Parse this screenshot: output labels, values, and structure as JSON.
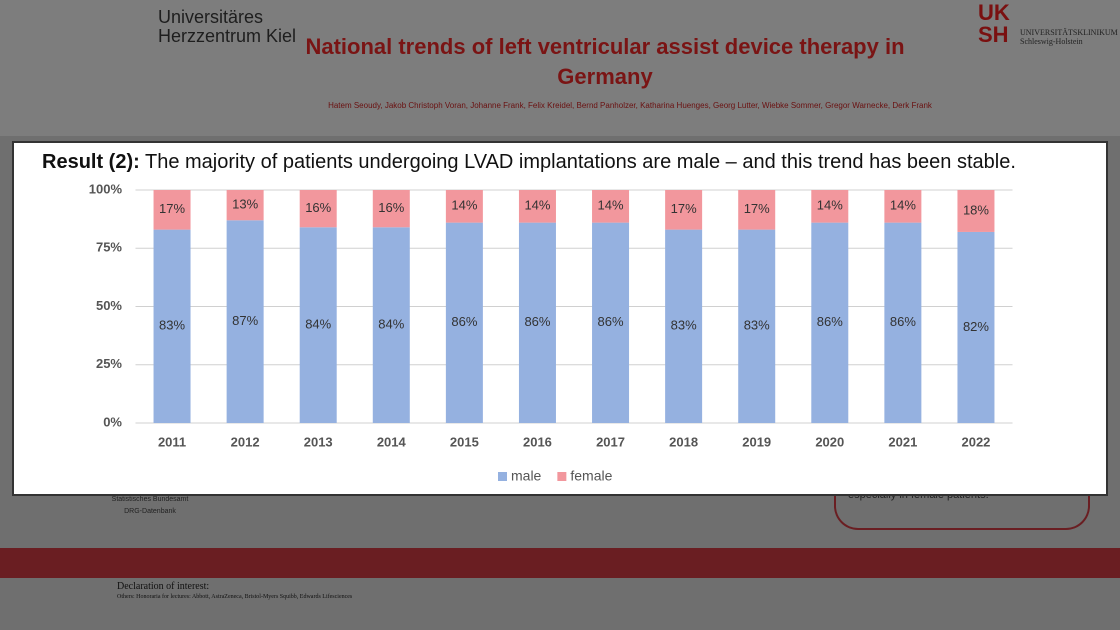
{
  "header": {
    "institution": "Universitäres Herzzentrum Kiel",
    "logo_right": "UKSH",
    "logo_right_sub": "UNIVERSITÄTSKLINIKUM Schleswig-Holstein",
    "title": "National trends of left ventricular assist device therapy in Germany",
    "authors": "Hatem Seoudy, Jakob Christoph Voran, Johanne Frank, Felix Kreidel, Bernd Panholzer, Katharina Huenges, Georg Lutter, Wiebke Sommer, Gregor Warnecke, Derk Frank"
  },
  "background": {
    "source_1": "Statistisches Bundesamt",
    "source_2": "DRG-Datenbank",
    "conclusion": "especially in female patients.",
    "declaration_title": "Declaration of interest:",
    "declaration_text": "Others: Honoraria for lectures: Abbott, AstraZeneca, Bristol-Myers Squibb, Edwards Lifesciences"
  },
  "result": {
    "label": "Result (2):",
    "text": "The majority of patients undergoing LVAD implantations are male – and this trend has been stable."
  },
  "chart_data": {
    "type": "bar",
    "stacked": true,
    "grid": true,
    "legend": "bottom",
    "categories": [
      "2011",
      "2012",
      "2013",
      "2014",
      "2015",
      "2016",
      "2017",
      "2018",
      "2019",
      "2020",
      "2021",
      "2022"
    ],
    "series": [
      {
        "name": "male",
        "color": "#95b1e0",
        "values": [
          83,
          87,
          84,
          84,
          86,
          86,
          86,
          83,
          83,
          86,
          86,
          82
        ],
        "value_labels": [
          "83%",
          "87%",
          "84%",
          "84%",
          "86%",
          "86%",
          "86%",
          "83%",
          "83%",
          "86%",
          "86%",
          "82%"
        ]
      },
      {
        "name": "female",
        "color": "#f2979d",
        "values": [
          17,
          13,
          16,
          16,
          14,
          14,
          14,
          17,
          17,
          14,
          14,
          18
        ],
        "value_labels": [
          "17%",
          "13%",
          "16%",
          "16%",
          "14%",
          "14%",
          "14%",
          "17%",
          "17%",
          "14%",
          "14%",
          "18%"
        ]
      }
    ],
    "ylim": [
      0,
      100
    ],
    "yticks": [
      {
        "value": 0,
        "label": "0%"
      },
      {
        "value": 25,
        "label": "25%"
      },
      {
        "value": 50,
        "label": "50%"
      },
      {
        "value": 75,
        "label": "75%"
      },
      {
        "value": 100,
        "label": "100%"
      }
    ]
  }
}
